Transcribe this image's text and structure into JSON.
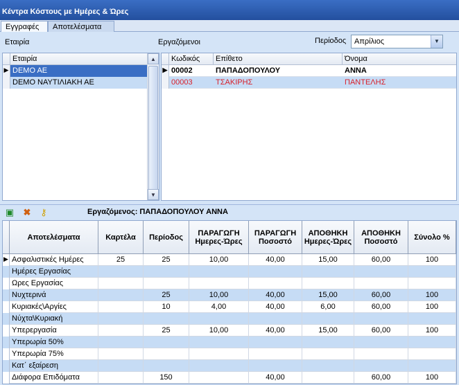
{
  "window": {
    "title": "Κέντρα Κόστους με Ημέρες & Ώρες"
  },
  "tabs": [
    {
      "label": "Εγγραφές"
    },
    {
      "label": "Αποτελέσματα"
    }
  ],
  "filters": {
    "company_label": "Εταιρία",
    "employees_label": "Εργαζόμενοι",
    "period_label": "Περίοδος",
    "period_value": "Απρίλιος"
  },
  "companies": {
    "header": "Εταιρία",
    "rows": [
      {
        "name": "DEMO AE"
      },
      {
        "name": "DEMO ΝΑΥΤΙΛΙΑΚΗ ΑΕ"
      }
    ]
  },
  "employees": {
    "headers": {
      "code": "Κωδικός",
      "surname": "Επίθετο",
      "name": "Όνομα"
    },
    "rows": [
      {
        "code": "00002",
        "surname": "ΠΑΠΑΔΟΠΟΥΛΟΥ",
        "name": "ΑΝΝΑ"
      },
      {
        "code": "00003",
        "surname": "ΤΣΑΚΙΡΗΣ",
        "name": "ΠΑΝΤΕΛΗΣ"
      }
    ]
  },
  "toolbar": {
    "employee_caption": "Εργαζόμενος: ΠΑΠΑΔΟΠΟΥΛΟΥ ΑΝΝΑ",
    "icons": [
      "save-icon",
      "delete-icon",
      "key-icon"
    ]
  },
  "results": {
    "headers": {
      "c0": "Αποτελέσματα",
      "c1": "Καρτέλα",
      "c2": "Περίοδος",
      "c3": "ΠΑΡΑΓΩΓΗ Ημερες-Ώρες",
      "c4": "ΠΑΡΑΓΩΓΗ Ποσοστό",
      "c5": "ΑΠΟΘΗΚΗ Ημερες-Ώρες",
      "c6": "ΑΠΟΘΗΚΗ Ποσοστό",
      "c7": "Σύνολο %"
    },
    "rows": [
      {
        "c0": "Ασφαλιστικές Ημέρες",
        "c1": "25",
        "c2": "25",
        "c3": "10,00",
        "c4": "40,00",
        "c5": "15,00",
        "c6": "60,00",
        "c7": "100"
      },
      {
        "c0": "Ημέρες Εργασίας",
        "c1": "",
        "c2": "",
        "c3": "",
        "c4": "",
        "c5": "",
        "c6": "",
        "c7": ""
      },
      {
        "c0": "Ωρες Εργασίας",
        "c1": "",
        "c2": "",
        "c3": "",
        "c4": "",
        "c5": "",
        "c6": "",
        "c7": ""
      },
      {
        "c0": "Νυχτερινά",
        "c1": "",
        "c2": "25",
        "c3": "10,00",
        "c4": "40,00",
        "c5": "15,00",
        "c6": "60,00",
        "c7": "100"
      },
      {
        "c0": "Κυριακές\\Αργίες",
        "c1": "",
        "c2": "10",
        "c3": "4,00",
        "c4": "40,00",
        "c5": "6,00",
        "c6": "60,00",
        "c7": "100"
      },
      {
        "c0": "Νύχτα\\Κυριακή",
        "c1": "",
        "c2": "",
        "c3": "",
        "c4": "",
        "c5": "",
        "c6": "",
        "c7": ""
      },
      {
        "c0": "Υπερεργασία",
        "c1": "",
        "c2": "25",
        "c3": "10,00",
        "c4": "40,00",
        "c5": "15,00",
        "c6": "60,00",
        "c7": "100"
      },
      {
        "c0": "Υπερωρία 50%",
        "c1": "",
        "c2": "",
        "c3": "",
        "c4": "",
        "c5": "",
        "c6": "",
        "c7": ""
      },
      {
        "c0": "Υπερωρία 75%",
        "c1": "",
        "c2": "",
        "c3": "",
        "c4": "",
        "c5": "",
        "c6": "",
        "c7": ""
      },
      {
        "c0": "Κατ΄ εξαίρεση",
        "c1": "",
        "c2": "",
        "c3": "",
        "c4": "",
        "c5": "",
        "c6": "",
        "c7": ""
      },
      {
        "c0": "Διάφορα Επιδόματα",
        "c1": "",
        "c2": "150",
        "c3": "",
        "c4": "40,00",
        "c5": "",
        "c6": "60,00",
        "c7": "100"
      }
    ]
  },
  "colors": {
    "accent": "#3a6ec4",
    "alt_row": "#c6dcf5",
    "inactive_text": "#d8202a"
  }
}
